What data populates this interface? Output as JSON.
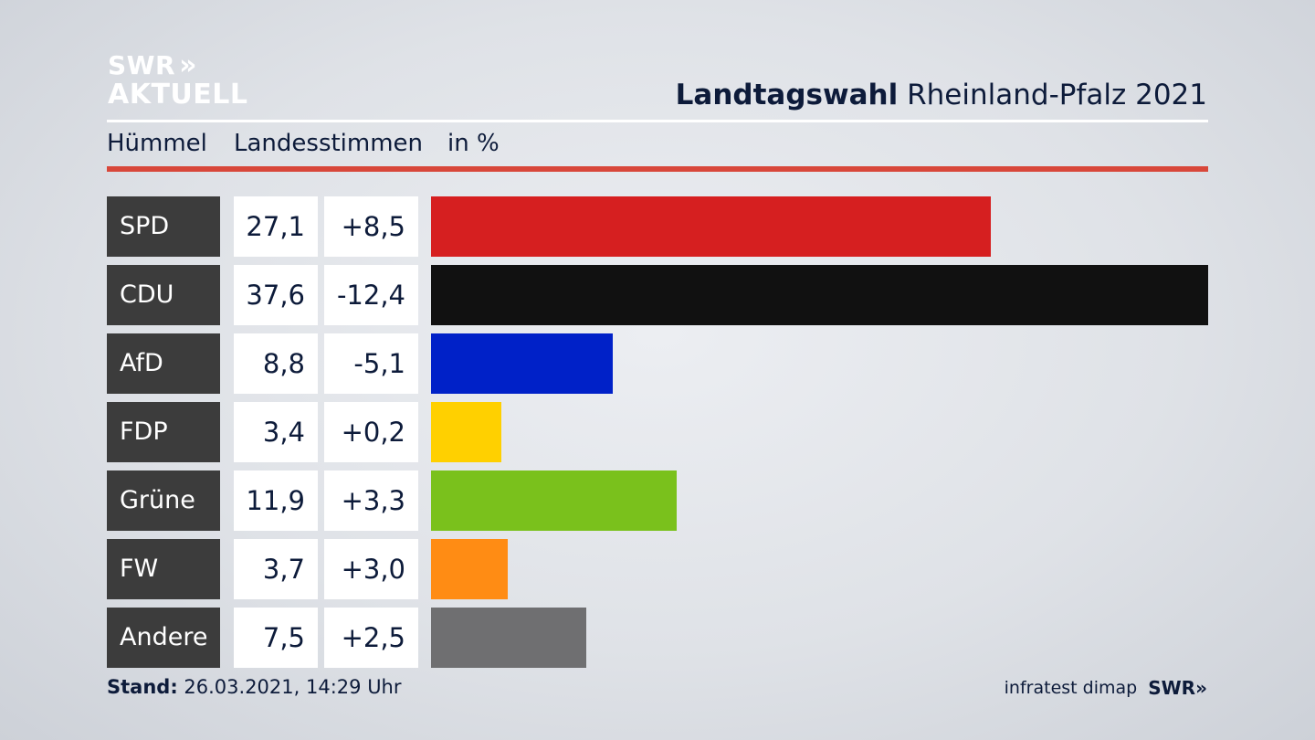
{
  "logo": {
    "line1": "SWR",
    "arrows": "»",
    "line2": "AKTUELL"
  },
  "title": {
    "bold": "Landtagswahl",
    "rest": "Rheinland-Pfalz 2021"
  },
  "subhead": {
    "district": "Hümmel",
    "measure": "Landesstimmen",
    "unit": "in %"
  },
  "chart_data": {
    "type": "bar",
    "orientation": "horizontal",
    "categories": [
      "SPD",
      "CDU",
      "AfD",
      "FDP",
      "Grüne",
      "FW",
      "Andere"
    ],
    "values": [
      27.1,
      37.6,
      8.8,
      3.4,
      11.9,
      3.7,
      7.5
    ],
    "value_labels": [
      "27,1",
      "37,6",
      "8,8",
      "3,4",
      "11,9",
      "3,7",
      "7,5"
    ],
    "changes": [
      8.5,
      -12.4,
      -5.1,
      0.2,
      3.3,
      3.0,
      2.5
    ],
    "change_labels": [
      "+8,5",
      "-12,4",
      "-5,1",
      "+0,2",
      "+3,3",
      "+3,0",
      "+2,5"
    ],
    "colors": [
      "#d61f20",
      "#111111",
      "#0021c8",
      "#ffd000",
      "#7ac11c",
      "#ff8c14",
      "#6f6f71"
    ],
    "xlim": [
      0,
      37.6
    ],
    "grid": false
  },
  "footer": {
    "stand_label": "Stand:",
    "stand_value": "26.03.2021, 14:29 Uhr",
    "source": "infratest dimap",
    "brand": "SWR",
    "brand_arrows": "»"
  }
}
